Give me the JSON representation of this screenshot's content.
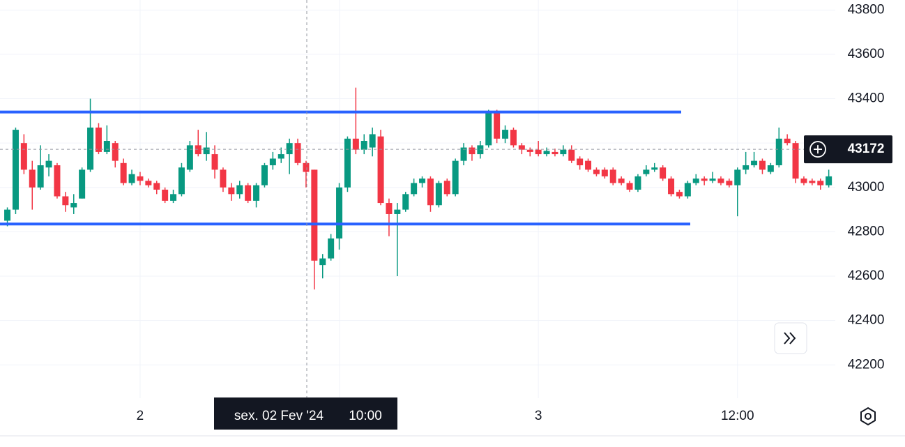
{
  "chart_data": {
    "type": "candlestick",
    "categories": [
      null,
      null,
      null,
      null,
      null,
      null,
      null,
      null,
      null,
      null,
      null,
      null,
      null,
      null,
      null,
      null,
      "2",
      null,
      null,
      null,
      null,
      null,
      null,
      null,
      null,
      null,
      null,
      null,
      null,
      null,
      null,
      null,
      null,
      null,
      null,
      null,
      null,
      null,
      null,
      null,
      null,
      null,
      null,
      null,
      null,
      null,
      null,
      null,
      null,
      null,
      null,
      null,
      null,
      null,
      null,
      null,
      null,
      null,
      null,
      null,
      null,
      null,
      null,
      null,
      "3",
      null,
      null,
      null,
      null,
      null,
      null,
      null,
      null,
      null,
      null,
      null,
      null,
      null,
      null,
      null,
      null,
      null,
      null,
      null,
      null,
      null,
      null,
      null,
      "12:00",
      null,
      null,
      null,
      null,
      null,
      null,
      null,
      null,
      null,
      null,
      null
    ],
    "open": [
      42850,
      42900,
      43200,
      43080,
      43000,
      43090,
      43100,
      42960,
      42910,
      42950,
      43080,
      43270,
      43160,
      43200,
      43110,
      43020,
      43050,
      43030,
      43020,
      42990,
      42940,
      42970,
      43080,
      43190,
      43150,
      43150,
      43080,
      43000,
      42970,
      43010,
      42940,
      43010,
      43100,
      43130,
      43150,
      43200,
      43110,
      43080,
      42650,
      42680,
      42770,
      43000,
      43220,
      43170,
      43180,
      43230,
      42930,
      42880,
      42900,
      42970,
      43020,
      43040,
      42920,
      43030,
      42970,
      43120,
      43180,
      43150,
      43190,
      43340,
      43220,
      43260,
      43190,
      43170,
      43170,
      43150,
      43160,
      43150,
      43170,
      43130,
      43120,
      43080,
      43080,
      43080,
      43040,
      43020,
      42990,
      43060,
      43080,
      43090,
      43040,
      42980,
      42960,
      43020,
      43040,
      43030,
      43040,
      43030,
      43010,
      43080,
      43100,
      43120,
      43070,
      43100,
      43220,
      43200,
      43040,
      43030,
      43030,
      43010
    ],
    "high": [
      42910,
      43270,
      43240,
      43120,
      43190,
      43150,
      43110,
      42980,
      42970,
      43090,
      43400,
      43290,
      43280,
      43210,
      43130,
      43080,
      43070,
      43040,
      43030,
      43000,
      42990,
      43110,
      43210,
      43260,
      43250,
      43190,
      43090,
      43020,
      43030,
      43020,
      43020,
      43110,
      43160,
      43180,
      43220,
      43220,
      43120,
      43080,
      42700,
      42790,
      43020,
      43230,
      43450,
      43240,
      43270,
      43260,
      42950,
      42930,
      42980,
      43040,
      43050,
      43050,
      43030,
      43040,
      43130,
      43200,
      43190,
      43210,
      43350,
      43350,
      43280,
      43270,
      43200,
      43180,
      43210,
      43180,
      43175,
      43190,
      43190,
      43140,
      43130,
      43090,
      43090,
      43090,
      43050,
      43030,
      43060,
      43100,
      43110,
      43100,
      43050,
      42990,
      43030,
      43060,
      43050,
      43070,
      43050,
      43040,
      43090,
      43160,
      43160,
      43130,
      43110,
      43270,
      43240,
      43210,
      43050,
      43040,
      43040,
      43080
    ],
    "low": [
      42825,
      42880,
      43060,
      42900,
      42990,
      43050,
      42950,
      42890,
      42880,
      42950,
      43070,
      43150,
      43150,
      43090,
      43010,
      43010,
      43010,
      43000,
      42970,
      42930,
      42930,
      42960,
      43070,
      43140,
      43120,
      43040,
      42980,
      42940,
      42950,
      42930,
      42910,
      43000,
      43080,
      43110,
      43060,
      43100,
      43000,
      42540,
      42590,
      42670,
      42720,
      42980,
      43150,
      43150,
      43140,
      42920,
      42780,
      42600,
      42890,
      42960,
      43000,
      42890,
      42910,
      42960,
      42960,
      43100,
      43120,
      43130,
      43180,
      43200,
      43200,
      43180,
      43150,
      43140,
      43140,
      43140,
      43140,
      43140,
      43110,
      43080,
      43070,
      43050,
      43040,
      43010,
      43010,
      42980,
      42980,
      43050,
      43070,
      43030,
      42960,
      42950,
      42950,
      43010,
      43010,
      43020,
      43010,
      43000,
      42870,
      43060,
      43090,
      43060,
      43060,
      43090,
      43190,
      43020,
      43010,
      43010,
      42990,
      43000
    ],
    "close": [
      42900,
      43260,
      43080,
      43000,
      43100,
      43120,
      42960,
      42920,
      42930,
      43080,
      43270,
      43160,
      43210,
      43120,
      43020,
      43060,
      43030,
      43010,
      42990,
      42940,
      42970,
      43090,
      43190,
      43150,
      43180,
      43080,
      43000,
      42970,
      43010,
      42940,
      43010,
      43100,
      43130,
      43150,
      43200,
      43110,
      43070,
      42670,
      42680,
      42770,
      43000,
      43220,
      43170,
      43210,
      43240,
      42930,
      42880,
      42900,
      42970,
      43020,
      43040,
      42920,
      43020,
      42970,
      43120,
      43180,
      43150,
      43190,
      43340,
      43220,
      43260,
      43190,
      43170,
      43160,
      43150,
      43165,
      43150,
      43170,
      43120,
      43100,
      43080,
      43060,
      43050,
      43020,
      43020,
      42990,
      43050,
      43080,
      43090,
      43040,
      42970,
      42960,
      43020,
      43040,
      43030,
      43040,
      43020,
      43010,
      43080,
      43100,
      43120,
      43080,
      43100,
      43220,
      43200,
      43040,
      43020,
      43020,
      43010,
      43050
    ],
    "up_color": "#089981",
    "down_color": "#f23645",
    "ylim": [
      42050,
      43845
    ],
    "yticks": [
      42200,
      42400,
      42600,
      42800,
      43000,
      43200,
      43400,
      43600,
      43800
    ],
    "grid": true,
    "hlines": [
      {
        "value": 43340,
        "color": "#2962ff"
      },
      {
        "value": 42835,
        "color": "#2962ff"
      }
    ],
    "crosshair": {
      "date": "sex. 02 Fev '24",
      "time": "10:00",
      "price": 43172
    }
  }
}
